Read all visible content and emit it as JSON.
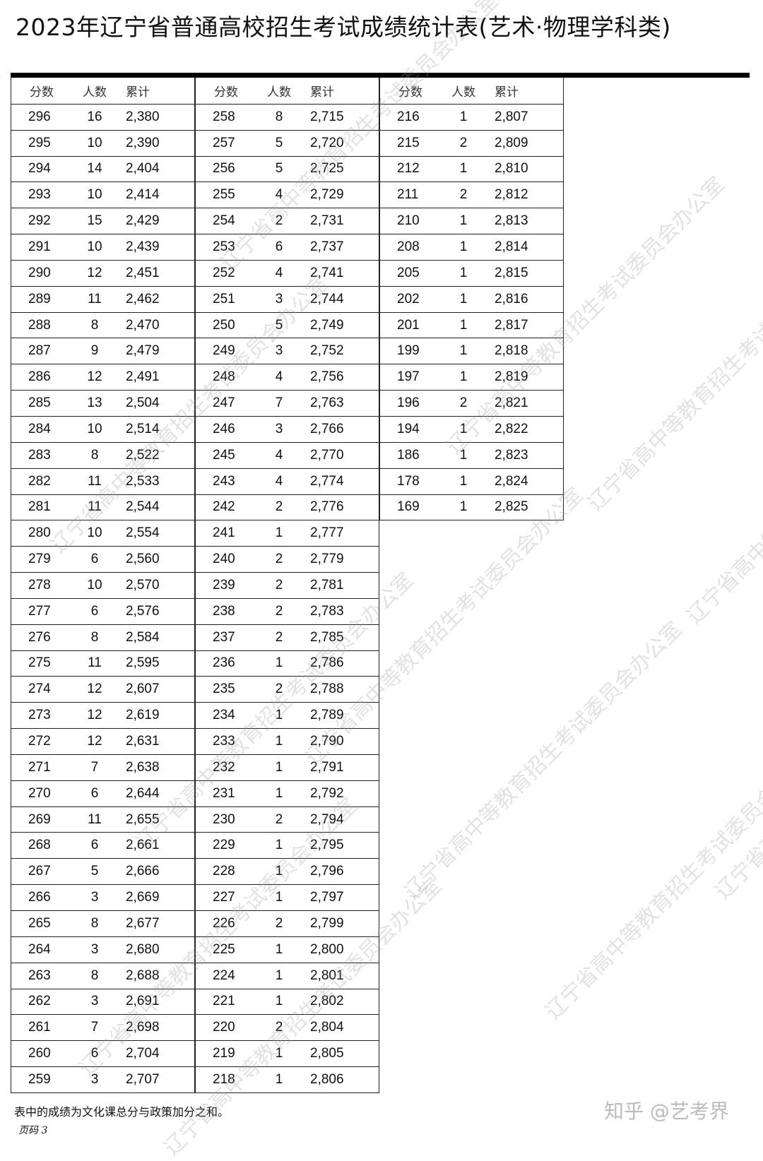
{
  "title": "2023年辽宁省普通高校招生考试成绩统计表(艺术·物理学科类)",
  "headers": [
    "分数",
    "人数",
    "累计"
  ],
  "columns": [
    [
      [
        "296",
        "16",
        "2,380"
      ],
      [
        "295",
        "10",
        "2,390"
      ],
      [
        "294",
        "14",
        "2,404"
      ],
      [
        "293",
        "10",
        "2,414"
      ],
      [
        "292",
        "15",
        "2,429"
      ],
      [
        "291",
        "10",
        "2,439"
      ],
      [
        "290",
        "12",
        "2,451"
      ],
      [
        "289",
        "11",
        "2,462"
      ],
      [
        "288",
        "8",
        "2,470"
      ],
      [
        "287",
        "9",
        "2,479"
      ],
      [
        "286",
        "12",
        "2,491"
      ],
      [
        "285",
        "13",
        "2,504"
      ],
      [
        "284",
        "10",
        "2,514"
      ],
      [
        "283",
        "8",
        "2,522"
      ],
      [
        "282",
        "11",
        "2,533"
      ],
      [
        "281",
        "11",
        "2,544"
      ],
      [
        "280",
        "10",
        "2,554"
      ],
      [
        "279",
        "6",
        "2,560"
      ],
      [
        "278",
        "10",
        "2,570"
      ],
      [
        "277",
        "6",
        "2,576"
      ],
      [
        "276",
        "8",
        "2,584"
      ],
      [
        "275",
        "11",
        "2,595"
      ],
      [
        "274",
        "12",
        "2,607"
      ],
      [
        "273",
        "12",
        "2,619"
      ],
      [
        "272",
        "12",
        "2,631"
      ],
      [
        "271",
        "7",
        "2,638"
      ],
      [
        "270",
        "6",
        "2,644"
      ],
      [
        "269",
        "11",
        "2,655"
      ],
      [
        "268",
        "6",
        "2,661"
      ],
      [
        "267",
        "5",
        "2,666"
      ],
      [
        "266",
        "3",
        "2,669"
      ],
      [
        "265",
        "8",
        "2,677"
      ],
      [
        "264",
        "3",
        "2,680"
      ],
      [
        "263",
        "8",
        "2,688"
      ],
      [
        "262",
        "3",
        "2,691"
      ],
      [
        "261",
        "7",
        "2,698"
      ],
      [
        "260",
        "6",
        "2,704"
      ],
      [
        "259",
        "3",
        "2,707"
      ]
    ],
    [
      [
        "258",
        "8",
        "2,715"
      ],
      [
        "257",
        "5",
        "2,720"
      ],
      [
        "256",
        "5",
        "2,725"
      ],
      [
        "255",
        "4",
        "2,729"
      ],
      [
        "254",
        "2",
        "2,731"
      ],
      [
        "253",
        "6",
        "2,737"
      ],
      [
        "252",
        "4",
        "2,741"
      ],
      [
        "251",
        "3",
        "2,744"
      ],
      [
        "250",
        "5",
        "2,749"
      ],
      [
        "249",
        "3",
        "2,752"
      ],
      [
        "248",
        "4",
        "2,756"
      ],
      [
        "247",
        "7",
        "2,763"
      ],
      [
        "246",
        "3",
        "2,766"
      ],
      [
        "245",
        "4",
        "2,770"
      ],
      [
        "243",
        "4",
        "2,774"
      ],
      [
        "242",
        "2",
        "2,776"
      ],
      [
        "241",
        "1",
        "2,777"
      ],
      [
        "240",
        "2",
        "2,779"
      ],
      [
        "239",
        "2",
        "2,781"
      ],
      [
        "238",
        "2",
        "2,783"
      ],
      [
        "237",
        "2",
        "2,785"
      ],
      [
        "236",
        "1",
        "2,786"
      ],
      [
        "235",
        "2",
        "2,788"
      ],
      [
        "234",
        "1",
        "2,789"
      ],
      [
        "233",
        "1",
        "2,790"
      ],
      [
        "232",
        "1",
        "2,791"
      ],
      [
        "231",
        "1",
        "2,792"
      ],
      [
        "230",
        "2",
        "2,794"
      ],
      [
        "229",
        "1",
        "2,795"
      ],
      [
        "228",
        "1",
        "2,796"
      ],
      [
        "227",
        "1",
        "2,797"
      ],
      [
        "226",
        "2",
        "2,799"
      ],
      [
        "225",
        "1",
        "2,800"
      ],
      [
        "224",
        "1",
        "2,801"
      ],
      [
        "221",
        "1",
        "2,802"
      ],
      [
        "220",
        "2",
        "2,804"
      ],
      [
        "219",
        "1",
        "2,805"
      ],
      [
        "218",
        "1",
        "2,806"
      ]
    ],
    [
      [
        "216",
        "1",
        "2,807"
      ],
      [
        "215",
        "2",
        "2,809"
      ],
      [
        "212",
        "1",
        "2,810"
      ],
      [
        "211",
        "2",
        "2,812"
      ],
      [
        "210",
        "1",
        "2,813"
      ],
      [
        "208",
        "1",
        "2,814"
      ],
      [
        "205",
        "1",
        "2,815"
      ],
      [
        "202",
        "1",
        "2,816"
      ],
      [
        "201",
        "1",
        "2,817"
      ],
      [
        "199",
        "1",
        "2,818"
      ],
      [
        "197",
        "1",
        "2,819"
      ],
      [
        "196",
        "2",
        "2,821"
      ],
      [
        "194",
        "1",
        "2,822"
      ],
      [
        "186",
        "1",
        "2,823"
      ],
      [
        "178",
        "1",
        "2,824"
      ],
      [
        "169",
        "1",
        "2,825"
      ]
    ]
  ],
  "footnote": "表中的成绩为文化课总分与政策加分之和。",
  "page_label": "页码 3",
  "brand_watermark": "知乎 @艺考界",
  "watermark_text": "辽宁省高中等教育招生考试委员会办公室"
}
